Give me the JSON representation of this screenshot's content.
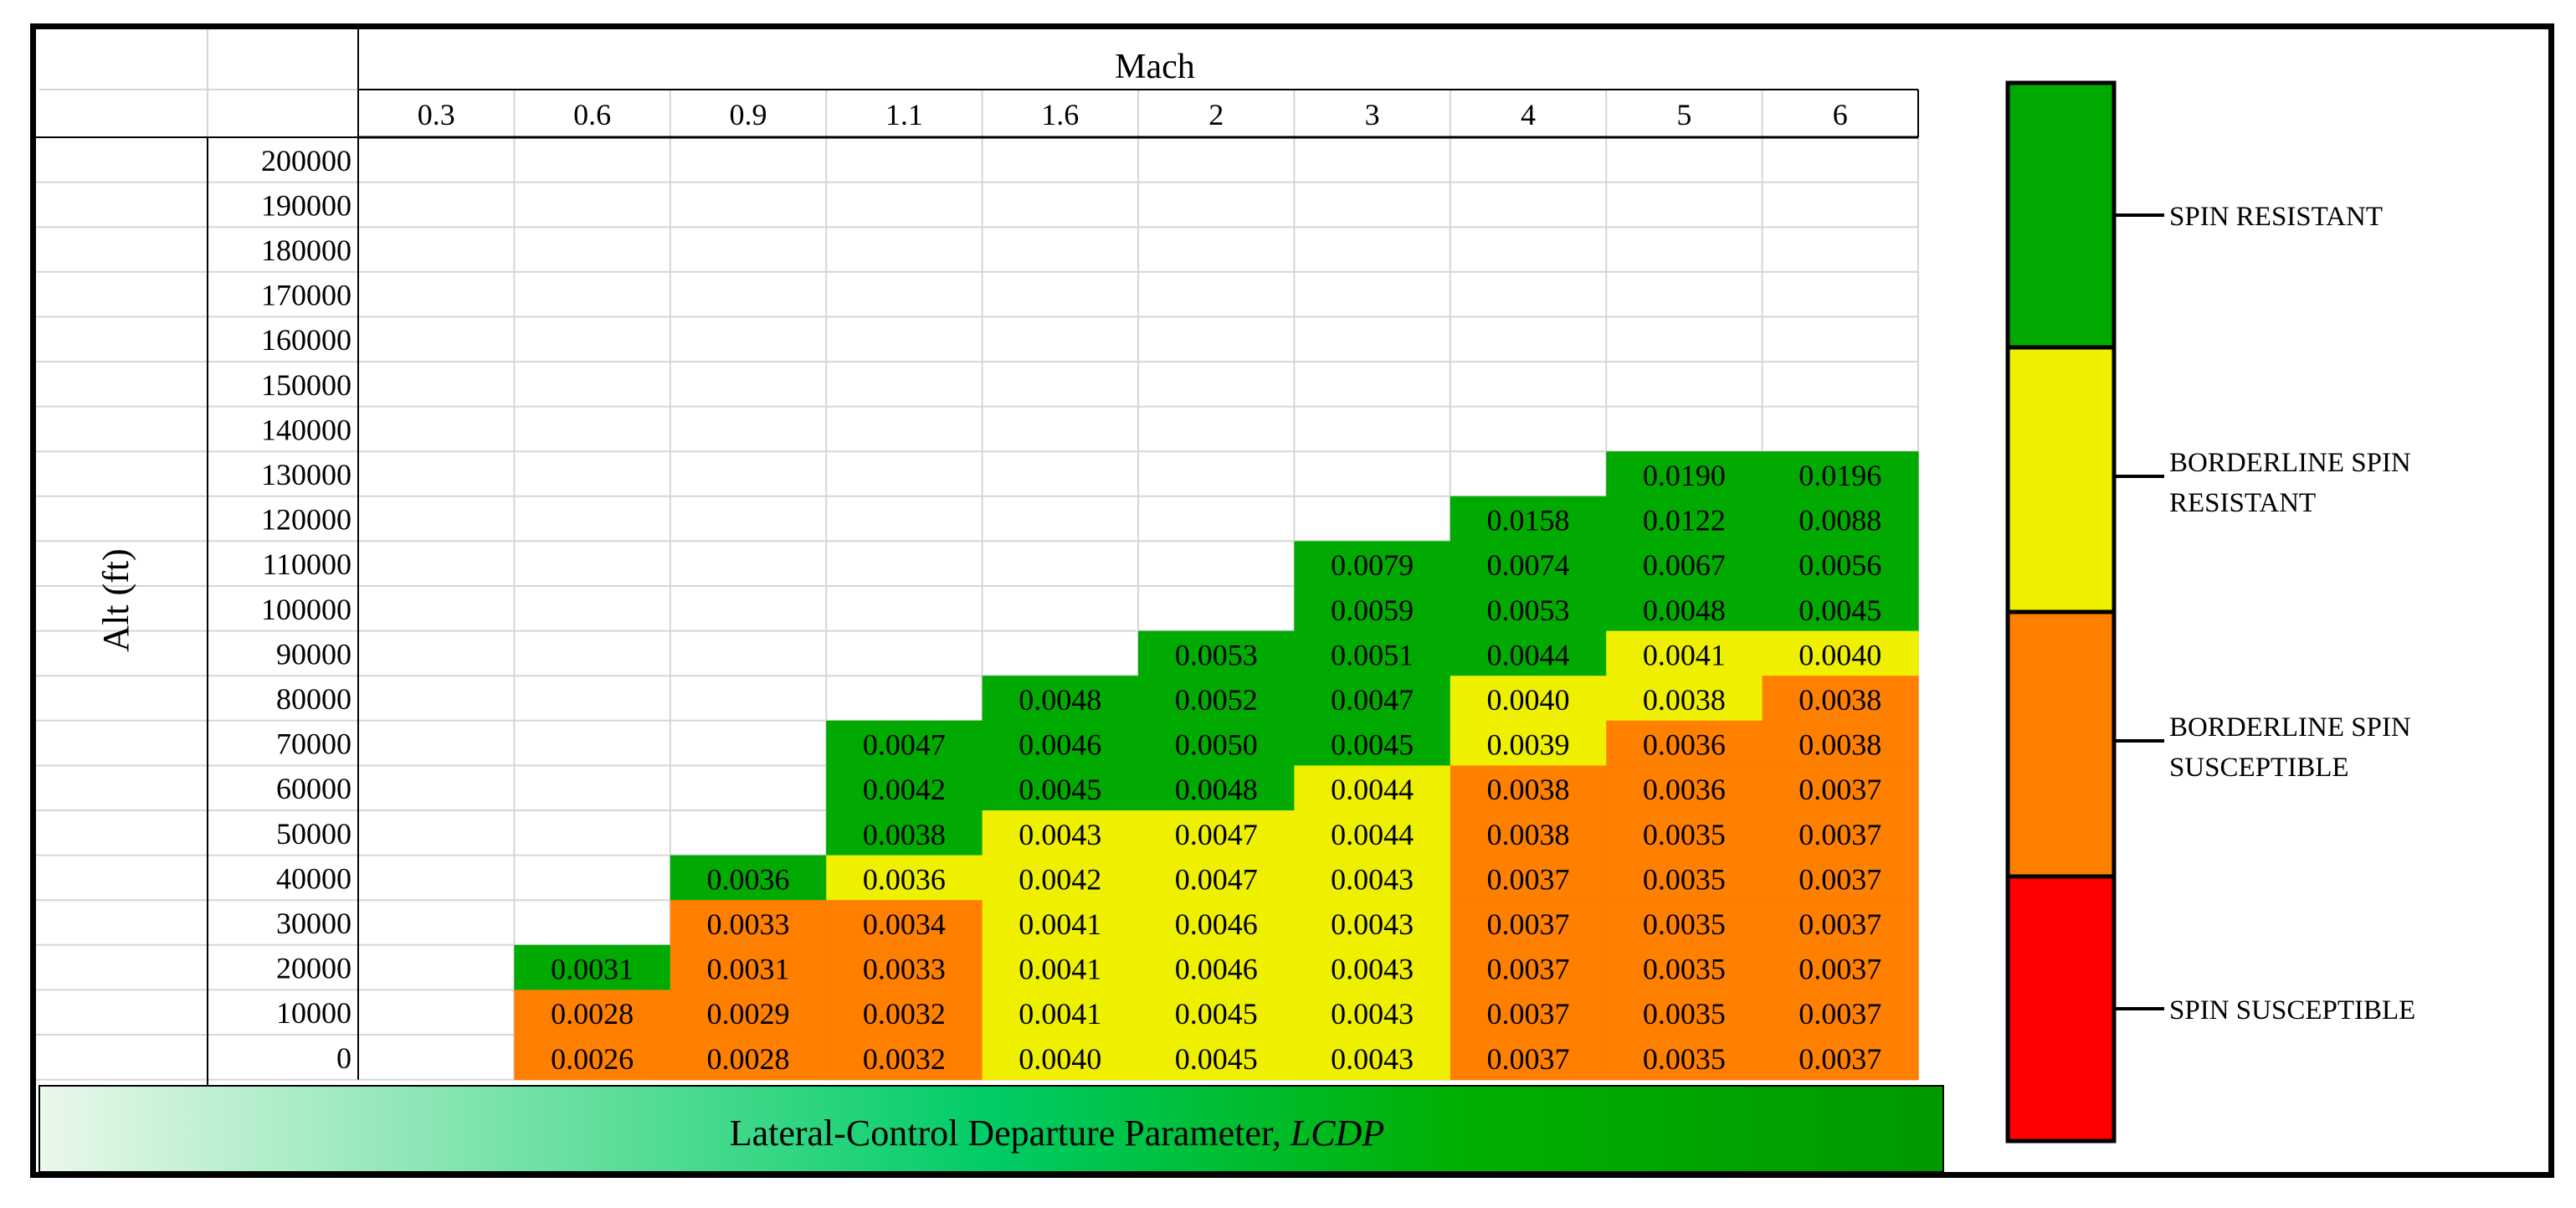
{
  "chart_data": {
    "type": "heatmap",
    "title": "Lateral-Control Departure Parameter, LCDP",
    "title_main": "Lateral-Control Departure Parameter, ",
    "title_italic": "LCDP",
    "xlabel": "Mach",
    "ylabel": "Alt (ft)",
    "x": [
      "0.3",
      "0.6",
      "0.9",
      "1.1",
      "1.6",
      "2",
      "3",
      "4",
      "5",
      "6"
    ],
    "y": [
      "200000",
      "190000",
      "180000",
      "170000",
      "160000",
      "150000",
      "140000",
      "130000",
      "120000",
      "110000",
      "100000",
      "90000",
      "80000",
      "70000",
      "60000",
      "50000",
      "40000",
      "30000",
      "20000",
      "10000",
      "0"
    ],
    "values": [
      [
        null,
        null,
        null,
        null,
        null,
        null,
        null,
        null,
        null,
        null
      ],
      [
        null,
        null,
        null,
        null,
        null,
        null,
        null,
        null,
        null,
        null
      ],
      [
        null,
        null,
        null,
        null,
        null,
        null,
        null,
        null,
        null,
        null
      ],
      [
        null,
        null,
        null,
        null,
        null,
        null,
        null,
        null,
        null,
        null
      ],
      [
        null,
        null,
        null,
        null,
        null,
        null,
        null,
        null,
        null,
        null
      ],
      [
        null,
        null,
        null,
        null,
        null,
        null,
        null,
        null,
        null,
        null
      ],
      [
        null,
        null,
        null,
        null,
        null,
        null,
        null,
        null,
        null,
        null
      ],
      [
        null,
        null,
        null,
        null,
        null,
        null,
        null,
        null,
        "0.0190",
        "0.0196"
      ],
      [
        null,
        null,
        null,
        null,
        null,
        null,
        null,
        "0.0158",
        "0.0122",
        "0.0088"
      ],
      [
        null,
        null,
        null,
        null,
        null,
        null,
        "0.0079",
        "0.0074",
        "0.0067",
        "0.0056"
      ],
      [
        null,
        null,
        null,
        null,
        null,
        null,
        "0.0059",
        "0.0053",
        "0.0048",
        "0.0045"
      ],
      [
        null,
        null,
        null,
        null,
        null,
        "0.0053",
        "0.0051",
        "0.0044",
        "0.0041",
        "0.0040"
      ],
      [
        null,
        null,
        null,
        null,
        "0.0048",
        "0.0052",
        "0.0047",
        "0.0040",
        "0.0038",
        "0.0038"
      ],
      [
        null,
        null,
        null,
        "0.0047",
        "0.0046",
        "0.0050",
        "0.0045",
        "0.0039",
        "0.0036",
        "0.0038"
      ],
      [
        null,
        null,
        null,
        "0.0042",
        "0.0045",
        "0.0048",
        "0.0044",
        "0.0038",
        "0.0036",
        "0.0037"
      ],
      [
        null,
        null,
        null,
        "0.0038",
        "0.0043",
        "0.0047",
        "0.0044",
        "0.0038",
        "0.0035",
        "0.0037"
      ],
      [
        null,
        null,
        "0.0036",
        "0.0036",
        "0.0042",
        "0.0047",
        "0.0043",
        "0.0037",
        "0.0035",
        "0.0037"
      ],
      [
        null,
        null,
        "0.0033",
        "0.0034",
        "0.0041",
        "0.0046",
        "0.0043",
        "0.0037",
        "0.0035",
        "0.0037"
      ],
      [
        null,
        "0.0031",
        "0.0031",
        "0.0033",
        "0.0041",
        "0.0046",
        "0.0043",
        "0.0037",
        "0.0035",
        "0.0037"
      ],
      [
        null,
        "0.0028",
        "0.0029",
        "0.0032",
        "0.0041",
        "0.0045",
        "0.0043",
        "0.0037",
        "0.0035",
        "0.0037"
      ],
      [
        null,
        "0.0026",
        "0.0028",
        "0.0032",
        "0.0040",
        "0.0045",
        "0.0043",
        "0.0037",
        "0.0035",
        "0.0037"
      ]
    ],
    "categories": [
      [
        0,
        0,
        0,
        0,
        0,
        0,
        0,
        0,
        0,
        0
      ],
      [
        0,
        0,
        0,
        0,
        0,
        0,
        0,
        0,
        0,
        0
      ],
      [
        0,
        0,
        0,
        0,
        0,
        0,
        0,
        0,
        0,
        0
      ],
      [
        0,
        0,
        0,
        0,
        0,
        0,
        0,
        0,
        0,
        0
      ],
      [
        0,
        0,
        0,
        0,
        0,
        0,
        0,
        0,
        0,
        0
      ],
      [
        0,
        0,
        0,
        0,
        0,
        0,
        0,
        0,
        0,
        0
      ],
      [
        0,
        0,
        0,
        0,
        0,
        0,
        0,
        0,
        0,
        0
      ],
      [
        0,
        0,
        0,
        0,
        0,
        0,
        0,
        0,
        1,
        1
      ],
      [
        0,
        0,
        0,
        0,
        0,
        0,
        0,
        1,
        1,
        1
      ],
      [
        0,
        0,
        0,
        0,
        0,
        0,
        1,
        1,
        1,
        1
      ],
      [
        0,
        0,
        0,
        0,
        0,
        0,
        1,
        1,
        1,
        1
      ],
      [
        0,
        0,
        0,
        0,
        0,
        1,
        1,
        1,
        2,
        2
      ],
      [
        0,
        0,
        0,
        0,
        1,
        1,
        1,
        2,
        2,
        3
      ],
      [
        0,
        0,
        0,
        1,
        1,
        1,
        1,
        2,
        3,
        3
      ],
      [
        0,
        0,
        0,
        1,
        1,
        1,
        2,
        3,
        3,
        3
      ],
      [
        0,
        0,
        0,
        1,
        2,
        2,
        2,
        3,
        3,
        3
      ],
      [
        0,
        0,
        1,
        2,
        2,
        2,
        2,
        3,
        3,
        3
      ],
      [
        0,
        0,
        3,
        3,
        2,
        2,
        2,
        3,
        3,
        3
      ],
      [
        0,
        1,
        3,
        3,
        2,
        2,
        2,
        3,
        3,
        3
      ],
      [
        0,
        3,
        3,
        3,
        2,
        2,
        2,
        3,
        3,
        3
      ],
      [
        0,
        3,
        3,
        3,
        2,
        2,
        2,
        3,
        3,
        3
      ]
    ],
    "category_colors": [
      "#ffffff",
      "#00aa00",
      "#eef000",
      "#ff7f00"
    ],
    "legend": [
      {
        "label_lines": [
          "SPIN RESISTANT"
        ],
        "color": "#00aa00"
      },
      {
        "label_lines": [
          "BORDERLINE SPIN",
          "RESISTANT"
        ],
        "color": "#eef000"
      },
      {
        "label_lines": [
          "BORDERLINE SPIN",
          "SUSCEPTIBLE"
        ],
        "color": "#ff7f00"
      },
      {
        "label_lines": [
          "SPIN SUSCEPTIBLE"
        ],
        "color": "#ff0000"
      }
    ],
    "legend_placement": "right",
    "grid": true,
    "title_gradient": [
      "#eaf8ea",
      "#00cc66",
      "#00b000",
      "#009900"
    ]
  }
}
